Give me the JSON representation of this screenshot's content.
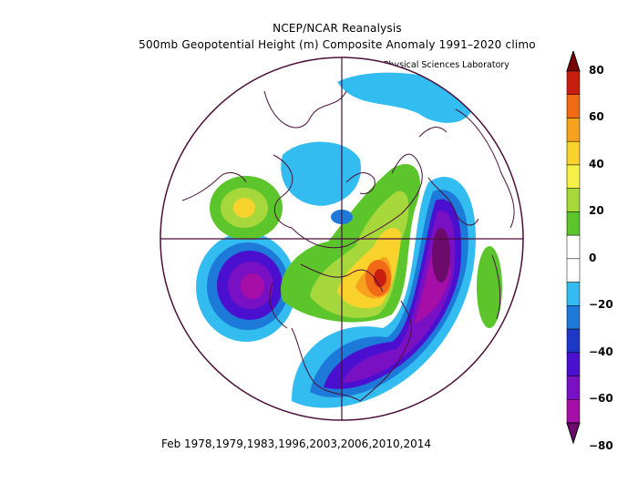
{
  "header": {
    "title": "NCEP/NCAR Reanalysis",
    "subtitle": "500mb Geopotential Height (m) Composite Anomaly 1991–2020 climo",
    "credit": "NOAA Physical Sciences Laboratory"
  },
  "footer": {
    "period": "Feb 1978,1979,1983,1996,2003,2006,2010,2014"
  },
  "colorbar": {
    "labels": [
      "80",
      "60",
      "40",
      "20",
      "0",
      "−20",
      "−40",
      "−60",
      "−80"
    ],
    "colors": [
      "#7a0403",
      "#c81e0f",
      "#f16a16",
      "#f7a21e",
      "#f9d32c",
      "#f4f045",
      "#a6d83b",
      "#5cc52c",
      "#ffffff",
      "#ffffff",
      "#33bcf0",
      "#1e7ad8",
      "#1d38c8",
      "#4b0fd0",
      "#7a10c4",
      "#a60ea8",
      "#6d0a6b"
    ]
  },
  "map": {
    "projection": "north polar stereographic",
    "anomalies": [
      {
        "region": "Eastern Canada / Hudson Bay",
        "sign": "positive",
        "max": 80
      },
      {
        "region": "Alaska / Bering",
        "sign": "positive",
        "max": 40
      },
      {
        "region": "North Atlantic (east)",
        "sign": "positive",
        "max": 20
      },
      {
        "region": "Eastern North Pacific",
        "sign": "negative",
        "min": -60
      },
      {
        "region": "Western Atlantic / Eastern US",
        "sign": "negative",
        "min": -80
      },
      {
        "region": "Greenland / Iceland",
        "sign": "negative",
        "min": -80
      }
    ]
  }
}
